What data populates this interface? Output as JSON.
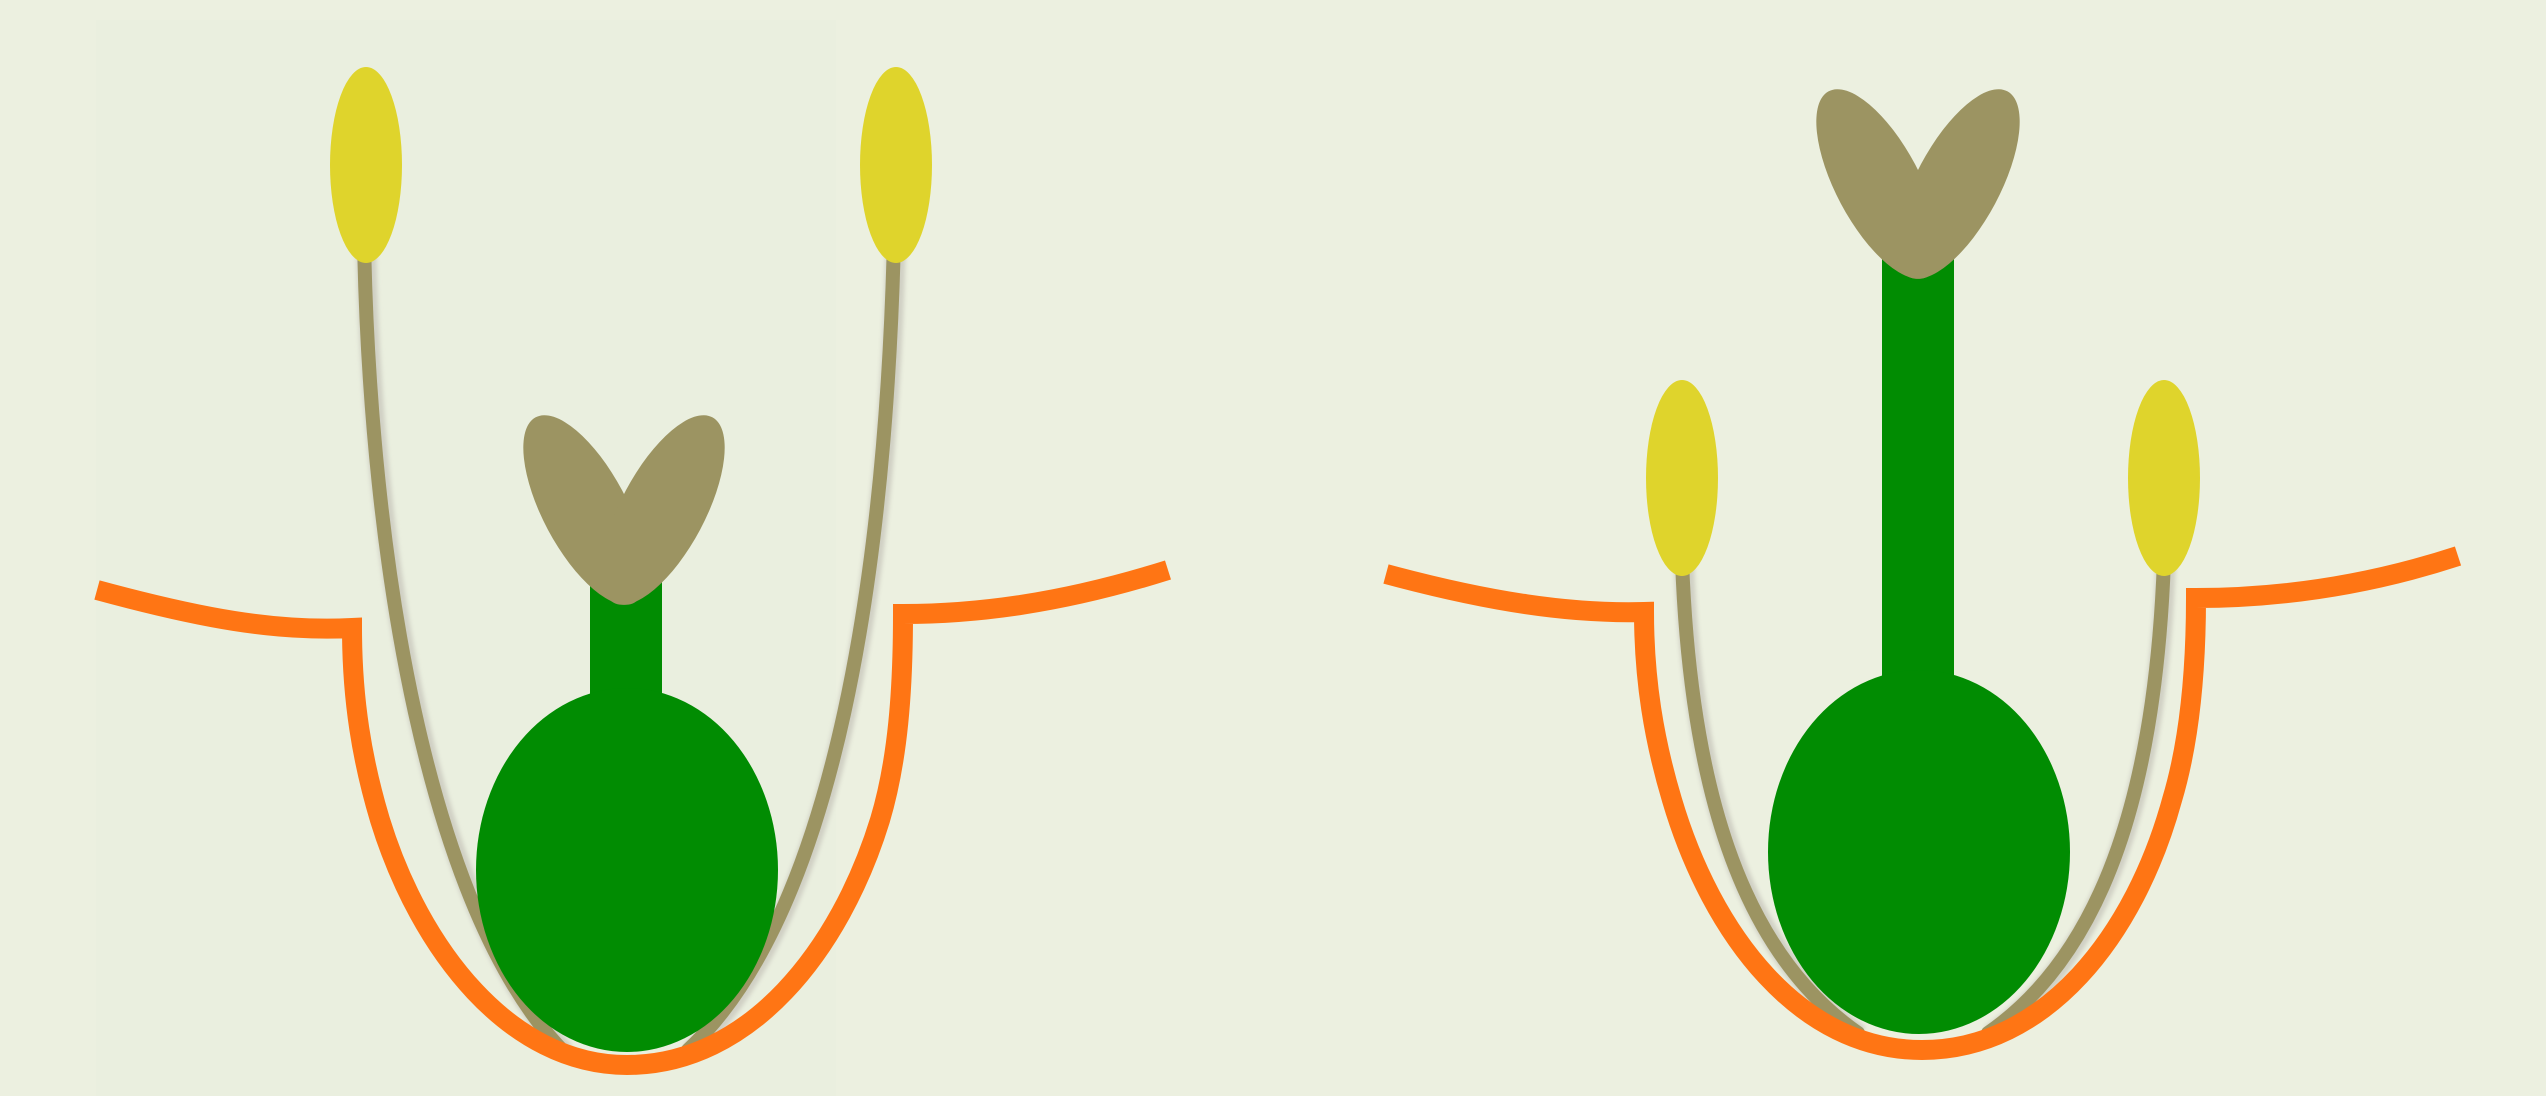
{
  "figure": {
    "description_kind": "flower-structure-comparison",
    "colors": {
      "background": "#ecf0e0",
      "panel_background": "#eaefdf",
      "receptacle": "#ff7514",
      "filament": "#9c9462",
      "filament_shadow": "#d0d0c4",
      "anther": "#dfd42c",
      "pistil": "#018c02",
      "stigma": "#9c9462"
    },
    "panels": [
      {
        "id": "left",
        "pistil_style": "short",
        "stamen_style": "long"
      },
      {
        "id": "right",
        "pistil_style": "long",
        "stamen_style": "short"
      }
    ]
  }
}
